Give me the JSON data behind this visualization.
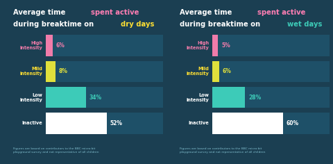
{
  "bg_color": "#1b3f52",
  "bar_bg": "#1e5068",
  "charts": [
    {
      "day": "dry",
      "title_line1_a": "Average time ",
      "title_line1_b": "spent active",
      "title_line2_a": "during breaktime on ",
      "title_line2_b": "dry days",
      "title_color_b1": "#ff7eb3",
      "title_color_b2": "#ffe033",
      "categories": [
        "High\nintensity",
        "Mild\nintensity",
        "Low\nintensity",
        "Inactive"
      ],
      "values": [
        6,
        8,
        34,
        52
      ],
      "bar_colors": [
        "#f07caa",
        "#e0e03c",
        "#3dcbb8",
        "#ffffff"
      ],
      "label_colors": [
        "#f07caa",
        "#e0e03c",
        "#3dcbb8",
        "#ffffff"
      ]
    },
    {
      "day": "wet",
      "title_line1_a": "Average time ",
      "title_line1_b": "spent active",
      "title_line2_a": "during breaktime on ",
      "title_line2_b": "wet days",
      "title_color_b1": "#ff7eb3",
      "title_color_b2": "#3dcbb8",
      "categories": [
        "High\nintensity",
        "Mild\nintensity",
        "Low\nintensity",
        "Inactive"
      ],
      "values": [
        5,
        6,
        28,
        60
      ],
      "bar_colors": [
        "#f07caa",
        "#e0e03c",
        "#3dcbb8",
        "#ffffff"
      ],
      "label_colors": [
        "#f07caa",
        "#e0e03c",
        "#3dcbb8",
        "#ffffff"
      ]
    }
  ],
  "footer_text": "Figures are based on contributors to the BBC micro:bit\nplayground survey and not representative of all children",
  "max_value": 100
}
